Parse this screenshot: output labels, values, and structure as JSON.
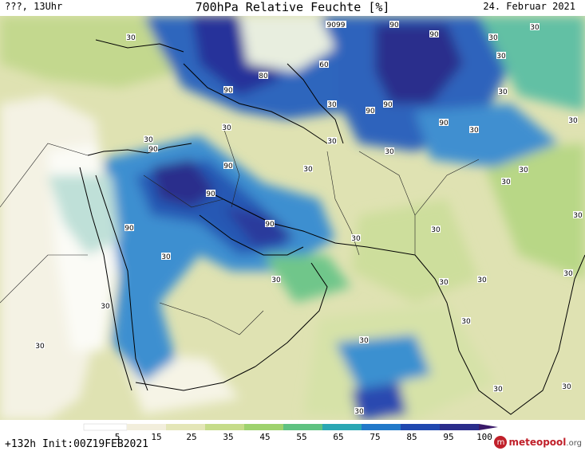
{
  "header": {
    "left": "???, 13Uhr",
    "title": "700hPa Relative Feuchte [%]",
    "date": "24. Februar 2021"
  },
  "footer": {
    "run_info": "+132h Init:00Z19FEB2021",
    "brand_name": "meteopool",
    "brand_tld": ".org"
  },
  "legend": {
    "ticks": [
      "5",
      "15",
      "25",
      "35",
      "45",
      "55",
      "65",
      "75",
      "85",
      "95",
      "100"
    ],
    "colors": [
      "#ffffff",
      "#f2eedc",
      "#e4e6b8",
      "#c6dc8a",
      "#9ed26e",
      "#5fc282",
      "#2aa7b4",
      "#2279c9",
      "#2048b0",
      "#2a2d8c",
      "#3a1a6a"
    ]
  },
  "map": {
    "contour_labels": [
      "30",
      "90",
      "9099",
      "80",
      "60"
    ]
  }
}
